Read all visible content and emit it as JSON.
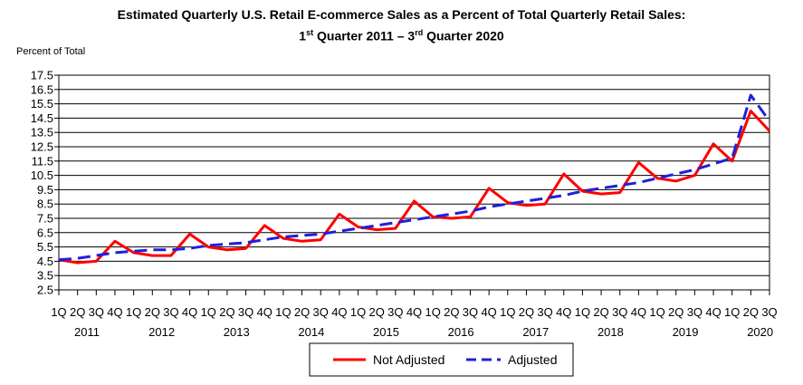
{
  "chart_data": {
    "type": "line",
    "title_line1": "Estimated Quarterly U.S. Retail E-commerce Sales as a Percent of Total Quarterly Retail Sales:",
    "title_line2": {
      "part1": "1",
      "sup1": "st",
      "part2": " Quarter 2011 – 3",
      "sup2": "rd",
      "part3": " Quarter 2020"
    },
    "ylabel": "Percent of Total",
    "xlabel": "",
    "ylim": [
      2.5,
      17.5
    ],
    "y_ticks": [
      "2.5",
      "3.5",
      "4.5",
      "5.5",
      "6.5",
      "7.5",
      "8.5",
      "9.5",
      "10.5",
      "11.5",
      "12.5",
      "13.5",
      "14.5",
      "15.5",
      "16.5",
      "17.5"
    ],
    "x_quarter_labels": [
      "1Q",
      "2Q",
      "3Q",
      "4Q",
      "1Q",
      "2Q",
      "3Q",
      "4Q",
      "1Q",
      "2Q",
      "3Q",
      "4Q",
      "1Q",
      "2Q",
      "3Q",
      "4Q",
      "1Q",
      "2Q",
      "3Q",
      "4Q",
      "1Q",
      "2Q",
      "3Q",
      "4Q",
      "1Q",
      "2Q",
      "3Q",
      "4Q",
      "1Q",
      "2Q",
      "3Q",
      "4Q",
      "1Q",
      "2Q",
      "3Q",
      "4Q",
      "1Q",
      "2Q",
      "3Q"
    ],
    "years": [
      "2011",
      "2012",
      "2013",
      "2014",
      "2015",
      "2016",
      "2017",
      "2018",
      "2019",
      "2020"
    ],
    "grid": true,
    "legend_position": "bottom",
    "series": [
      {
        "name": "Not Adjusted",
        "color": "#ff0000",
        "style": "solid",
        "values": [
          4.6,
          4.4,
          4.5,
          5.9,
          5.1,
          4.9,
          4.9,
          6.4,
          5.5,
          5.3,
          5.4,
          7.0,
          6.1,
          5.9,
          6.0,
          7.8,
          6.9,
          6.7,
          6.8,
          8.7,
          7.6,
          7.5,
          7.6,
          9.6,
          8.6,
          8.4,
          8.5,
          10.6,
          9.4,
          9.2,
          9.3,
          11.4,
          10.3,
          10.1,
          10.5,
          12.7,
          11.5,
          15.0,
          13.6
        ]
      },
      {
        "name": "Adjusted",
        "color": "#1f1fdb",
        "style": "dashed",
        "values": [
          4.6,
          4.7,
          4.9,
          5.1,
          5.2,
          5.3,
          5.3,
          5.4,
          5.6,
          5.7,
          5.8,
          6.0,
          6.2,
          6.3,
          6.4,
          6.6,
          6.8,
          7.0,
          7.2,
          7.4,
          7.6,
          7.8,
          8.0,
          8.3,
          8.5,
          8.7,
          8.9,
          9.1,
          9.4,
          9.6,
          9.8,
          10.0,
          10.3,
          10.6,
          10.9,
          11.3,
          11.7,
          16.1,
          14.3
        ]
      }
    ]
  }
}
